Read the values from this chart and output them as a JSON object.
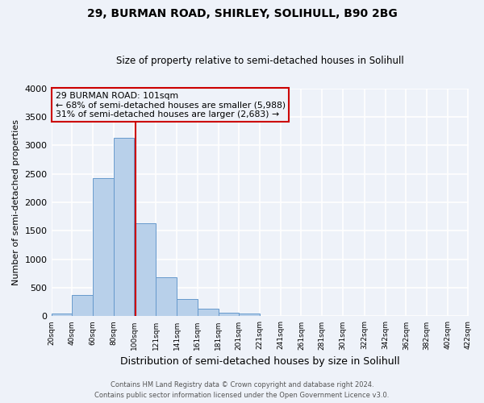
{
  "title": "29, BURMAN ROAD, SHIRLEY, SOLIHULL, B90 2BG",
  "subtitle": "Size of property relative to semi-detached houses in Solihull",
  "xlabel": "Distribution of semi-detached houses by size in Solihull",
  "ylabel": "Number of semi-detached properties",
  "bin_labels": [
    "20sqm",
    "40sqm",
    "60sqm",
    "80sqm",
    "100sqm",
    "121sqm",
    "141sqm",
    "161sqm",
    "181sqm",
    "201sqm",
    "221sqm",
    "241sqm",
    "261sqm",
    "281sqm",
    "301sqm",
    "322sqm",
    "342sqm",
    "362sqm",
    "382sqm",
    "402sqm",
    "422sqm"
  ],
  "bin_edges": [
    20,
    40,
    60,
    80,
    100,
    121,
    141,
    161,
    181,
    201,
    221,
    241,
    261,
    281,
    301,
    322,
    342,
    362,
    382,
    402,
    422
  ],
  "bar_heights": [
    50,
    370,
    2420,
    3130,
    1630,
    690,
    300,
    130,
    60,
    55,
    0,
    0,
    0,
    0,
    0,
    0,
    0,
    0,
    0,
    0
  ],
  "bar_color": "#b8d0ea",
  "bar_edge_color": "#6699cc",
  "property_value": 101,
  "vline_color": "#cc0000",
  "annotation_text_line1": "29 BURMAN ROAD: 101sqm",
  "annotation_text_line2": "← 68% of semi-detached houses are smaller (5,988)",
  "annotation_text_line3": "31% of semi-detached houses are larger (2,683) →",
  "annotation_box_edge_color": "#cc0000",
  "ylim": [
    0,
    4000
  ],
  "yticks": [
    0,
    500,
    1000,
    1500,
    2000,
    2500,
    3000,
    3500,
    4000
  ],
  "background_color": "#eef2f9",
  "grid_color": "#ffffff",
  "footer_line1": "Contains HM Land Registry data © Crown copyright and database right 2024.",
  "footer_line2": "Contains public sector information licensed under the Open Government Licence v3.0."
}
